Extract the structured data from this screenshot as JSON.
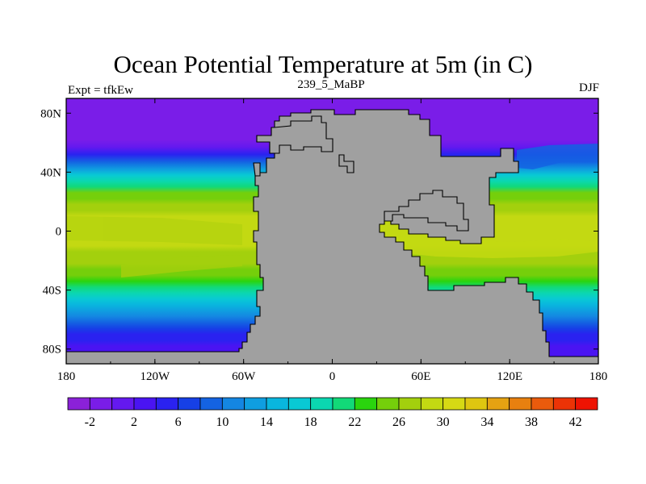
{
  "chart_data": {
    "type": "heatmap",
    "title": "Ocean Potential Temperature at 5m (in C)",
    "subtitle": "239_5_MaBP",
    "left_label": "Expt = tfkEw",
    "right_label": "DJF",
    "x_ticks": [
      {
        "value": -180,
        "label": "180"
      },
      {
        "value": -120,
        "label": "120W"
      },
      {
        "value": -60,
        "label": "60W"
      },
      {
        "value": 0,
        "label": "0"
      },
      {
        "value": 60,
        "label": "60E"
      },
      {
        "value": 120,
        "label": "120E"
      },
      {
        "value": 180,
        "label": "180"
      }
    ],
    "y_ticks": [
      {
        "value": 80,
        "label": "80N"
      },
      {
        "value": 40,
        "label": "40N"
      },
      {
        "value": 0,
        "label": "0"
      },
      {
        "value": -40,
        "label": "40S"
      },
      {
        "value": -80,
        "label": "80S"
      }
    ],
    "xlim": [
      -180,
      180
    ],
    "ylim": [
      -90,
      90
    ],
    "colorbar": {
      "levels": [
        -4,
        -2,
        0,
        2,
        4,
        6,
        8,
        10,
        12,
        14,
        16,
        18,
        20,
        22,
        24,
        26,
        28,
        30,
        32,
        34,
        36,
        38,
        40,
        42,
        44
      ],
      "tick_values": [
        -2,
        2,
        6,
        10,
        14,
        18,
        22,
        26,
        30,
        34,
        38,
        42
      ],
      "colors": [
        "#8b21d8",
        "#7a1de8",
        "#6419ef",
        "#4a14f2",
        "#2a22f0",
        "#1640e6",
        "#1463e2",
        "#1486e2",
        "#0f9ee0",
        "#09b6de",
        "#09c9d4",
        "#0bd7b0",
        "#12d978",
        "#2ad40e",
        "#75cf0b",
        "#a3d00d",
        "#c3d912",
        "#d6d914",
        "#dfc610",
        "#e5a212",
        "#e8800f",
        "#ea5b0c",
        "#ec3306",
        "#ee1302"
      ]
    },
    "land_color": "#a0a0a0",
    "meridional_temperature_profile": {
      "lat": [
        90,
        80,
        70,
        62,
        57,
        52,
        47,
        42,
        38,
        34,
        30,
        26,
        22,
        18,
        14,
        10,
        6,
        2,
        -2,
        -6,
        -10,
        -14,
        -18,
        -22,
        -26,
        -30,
        -34,
        -38,
        -42,
        -46,
        -50,
        -54,
        -58,
        -62,
        -66,
        -70,
        -74,
        -78,
        -90
      ],
      "temp_c": [
        -2,
        -2,
        -1.8,
        -1.2,
        1,
        5,
        9,
        13,
        16,
        19,
        21.5,
        24,
        25.5,
        26.5,
        27.5,
        28.5,
        29,
        29,
        28.8,
        28.5,
        28,
        27.5,
        27,
        26.5,
        25.5,
        24,
        22.5,
        21,
        19,
        17,
        15,
        13,
        11,
        9,
        7,
        5,
        4,
        3,
        2
      ]
    }
  }
}
